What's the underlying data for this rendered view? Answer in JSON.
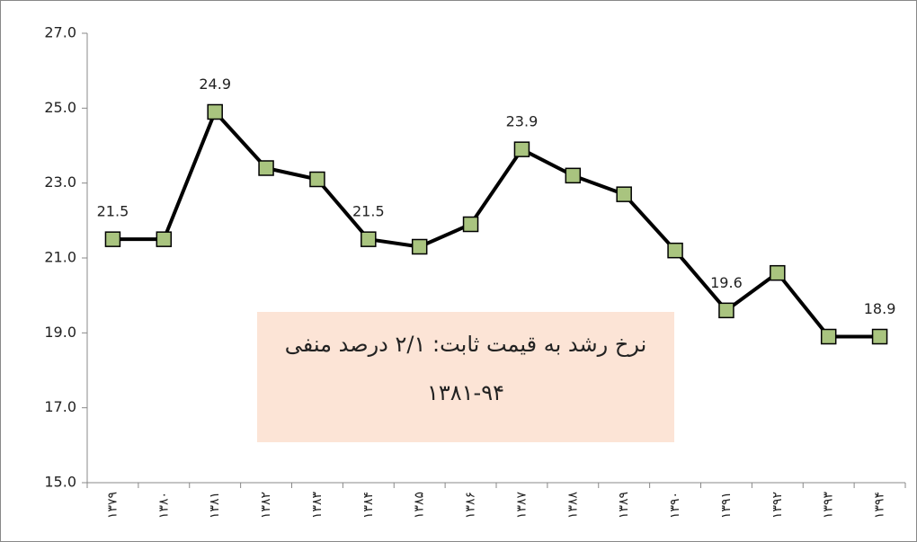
{
  "chart_data": {
    "type": "line",
    "categories": [
      "۱۳۷۹",
      "۱۳۸۰",
      "۱۳۸۱",
      "۱۳۸۲",
      "۱۳۸۳",
      "۱۳۸۴",
      "۱۳۸۵",
      "۱۳۸۶",
      "۱۳۸۷",
      "۱۳۸۸",
      "۱۳۸۹",
      "۱۳۹۰",
      "۱۳۹۱",
      "۱۳۹۲",
      "۱۳۹۳",
      "۱۳۹۴"
    ],
    "values": [
      21.5,
      21.5,
      24.9,
      23.4,
      23.1,
      21.5,
      21.3,
      21.9,
      23.9,
      23.2,
      22.7,
      21.2,
      19.6,
      20.6,
      18.9,
      18.9
    ],
    "value_labels": [
      "21.5",
      null,
      "24.9",
      null,
      null,
      "21.5",
      null,
      null,
      "23.9",
      null,
      null,
      null,
      "19.6",
      null,
      null,
      "18.9"
    ],
    "color": "#000000",
    "marker_color": "#a9c47f",
    "ylim": [
      15,
      27
    ],
    "yticks": [
      {
        "value": 15,
        "label": "15.0"
      },
      {
        "value": 17,
        "label": "17.0"
      },
      {
        "value": 19,
        "label": "19.0"
      },
      {
        "value": 21,
        "label": "21.0"
      },
      {
        "value": 23,
        "label": "23.0"
      },
      {
        "value": 25,
        "label": "25.0"
      },
      {
        "value": 27,
        "label": "27.0"
      }
    ],
    "annotations": [
      "نرخ رشد به قیمت ثابت: ۲/۱ درصد منفی",
      "۱۳۸۱-۹۴"
    ]
  }
}
